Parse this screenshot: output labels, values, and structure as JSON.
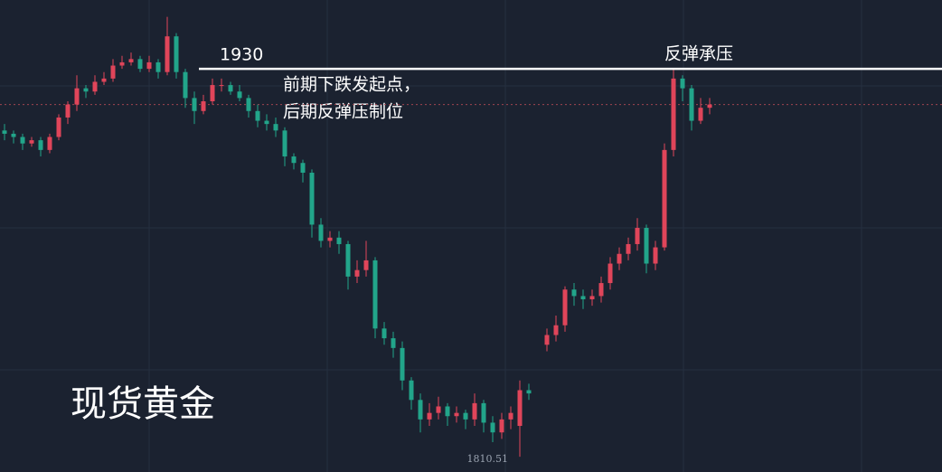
{
  "chart_data": {
    "type": "candlestick",
    "watermark": "现货黄金",
    "up_color": "#e0455a",
    "down_color": "#22a58a",
    "ylim": [
      1805.8,
      1951.2
    ],
    "open": [
      1911,
      1910,
      1909,
      1907,
      1908,
      1905,
      1909,
      1915,
      1919,
      1924,
      1923,
      1926,
      1927,
      1931,
      1932,
      1933,
      1930,
      1932,
      1929,
      1940,
      1929,
      1921,
      1917,
      1920,
      1925,
      1925,
      1923,
      1921,
      1917,
      1914,
      1913,
      1911,
      1903,
      1901,
      1898,
      1882,
      1877,
      1878,
      1876,
      1866,
      1868,
      1871,
      1850,
      1847,
      1844,
      1834,
      1828,
      1822,
      1824,
      1826,
      1823,
      1824,
      1822,
      1827,
      1821,
      1818,
      1822,
      1820,
      1831,
      null,
      1845,
      1848,
      1851,
      1862,
      1860,
      1859,
      1860,
      1864,
      1870,
      1873,
      1876,
      1881,
      1870,
      1875,
      1905,
      1927,
      1924,
      1914,
      1918
    ],
    "high": [
      1913,
      1911,
      1910,
      1909,
      1909,
      1910,
      1916,
      1920,
      1928,
      1925,
      1928,
      1929,
      1933,
      1934,
      1935,
      1934,
      1934,
      1933,
      1946,
      1941,
      1930,
      1923,
      1922,
      1927,
      1927,
      1926,
      1925,
      1922,
      1919,
      1916,
      1915,
      1912,
      1904,
      1902,
      1899,
      1884,
      1880,
      1880,
      1877,
      1871,
      1877,
      1872,
      1852,
      1849,
      1846,
      1835,
      1830,
      1827,
      1829,
      1827,
      1826,
      1825,
      1830,
      1828,
      1823,
      1824,
      1826,
      1834,
      1833,
      null,
      1850,
      1854,
      1863,
      1864,
      1862,
      1862,
      1866,
      1872,
      1875,
      1878,
      1884,
      1882,
      1877,
      1907,
      1930,
      1928,
      1925,
      1921,
      1921
    ],
    "low": [
      1908,
      1907,
      1905,
      1906,
      1903,
      1904,
      1908,
      1913,
      1917,
      1921,
      1922,
      1925,
      1926,
      1930,
      1931,
      1929,
      1929,
      1927,
      1928,
      1927,
      1918,
      1913,
      1916,
      1919,
      1923,
      1922,
      1920,
      1915,
      1912,
      1911,
      1909,
      1900,
      1899,
      1895,
      1878,
      1875,
      1875,
      1873,
      1862,
      1864,
      1866,
      1847,
      1845,
      1841,
      1831,
      1825,
      1818,
      1820,
      1822,
      1820,
      1821,
      1819,
      1820,
      1818,
      1815,
      1816,
      1819,
      1810.51,
      1828,
      null,
      1843,
      1846,
      1849,
      1857,
      1856,
      1857,
      1858,
      1862,
      1868,
      1871,
      1874,
      1867,
      1868,
      1874,
      1903,
      1920,
      1911,
      1913,
      1916
    ],
    "close": [
      1910,
      1909,
      1907,
      1908,
      1905,
      1909,
      1915,
      1919,
      1924,
      1923,
      1926,
      1927,
      1931,
      1932,
      1933,
      1930,
      1932,
      1929,
      1940,
      1929,
      1921,
      1917,
      1920,
      1925,
      1925,
      1923,
      1921,
      1917,
      1914,
      1913,
      1911,
      1903,
      1901,
      1898,
      1882,
      1877,
      1878,
      1876,
      1866,
      1868,
      1871,
      1850,
      1847,
      1844,
      1834,
      1828,
      1822,
      1824,
      1826,
      1823,
      1824,
      1822,
      1827,
      1821,
      1818,
      1822,
      1824,
      1831,
      1830,
      null,
      1848,
      1851,
      1862,
      1860,
      1859,
      1860,
      1864,
      1870,
      1873,
      1876,
      1881,
      1870,
      1875,
      1905,
      1927,
      1924,
      1914,
      1918,
      1919
    ],
    "level_line": {
      "value": 1930,
      "label": "反弹承压"
    },
    "annotation": [
      "前期下跌发起点，",
      "后期反弹压制位"
    ]
  }
}
